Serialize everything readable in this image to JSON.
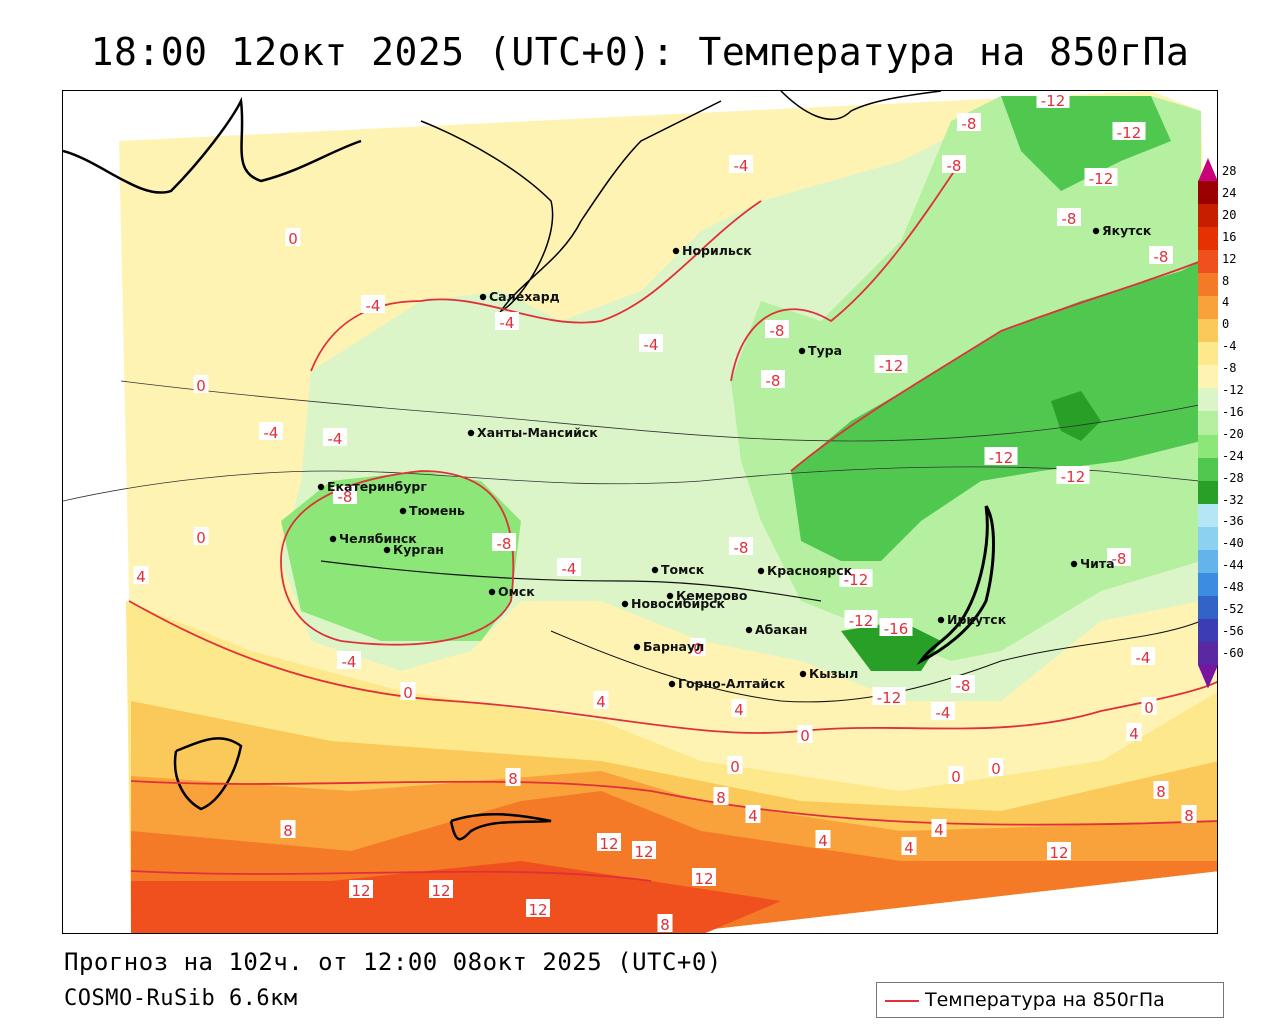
{
  "title": "18:00 12окт 2025 (UTC+0): Температура на 850гПа",
  "footer": {
    "forecast": "Прогноз на 102ч. от 12:00 08окт 2025 (UTC+0)",
    "model": "COSMO-RuSib 6.6км"
  },
  "legend": {
    "label": "Температура на 850гПа",
    "line_color": "#e0303a"
  },
  "colorbar": {
    "ticks": [
      "28",
      "24",
      "20",
      "16",
      "12",
      "8",
      "4",
      "0",
      "-4",
      "-8",
      "-12",
      "-16",
      "-20",
      "-24",
      "-28",
      "-32",
      "-36",
      "-40",
      "-44",
      "-48",
      "-52",
      "-56",
      "-60"
    ],
    "colors": [
      "#c8007a",
      "#9b0000",
      "#c81e00",
      "#e63200",
      "#f0501e",
      "#f57a28",
      "#f9a23c",
      "#fbc85a",
      "#fde88c",
      "#fff3b4",
      "#dcf5c8",
      "#b4f0a0",
      "#8ce678",
      "#50c850",
      "#28a028",
      "#b4e6f5",
      "#8cd2f0",
      "#64b4eb",
      "#3c8ce1",
      "#3264c8",
      "#3c3cb4",
      "#5a28a0",
      "#7814a0"
    ]
  },
  "cities": [
    {
      "name": "Норильск"
    },
    {
      "name": "Якутск"
    },
    {
      "name": "Салехард"
    },
    {
      "name": "Тура"
    },
    {
      "name": "Ханты-Мансийск"
    },
    {
      "name": "Екатеринбург"
    },
    {
      "name": "Тюмень"
    },
    {
      "name": "Челябинск"
    },
    {
      "name": "Курган"
    },
    {
      "name": "Омск"
    },
    {
      "name": "Томск"
    },
    {
      "name": "Новосибирск"
    },
    {
      "name": "Кемерово"
    },
    {
      "name": "Красноярск"
    },
    {
      "name": "Абакан"
    },
    {
      "name": "Барнаул"
    },
    {
      "name": "Горно-Алтайск"
    },
    {
      "name": "Кызыл"
    },
    {
      "name": "Иркутск"
    },
    {
      "name": "Чита"
    }
  ],
  "contour_labels": [
    {
      "value": "0"
    },
    {
      "value": "-4"
    },
    {
      "value": "-4"
    },
    {
      "value": "-4"
    },
    {
      "value": "-8"
    },
    {
      "value": "-8"
    },
    {
      "value": "-12"
    },
    {
      "value": "-12"
    },
    {
      "value": "-8"
    },
    {
      "value": "-8"
    },
    {
      "value": "-12"
    },
    {
      "value": "-4"
    },
    {
      "value": "-8"
    },
    {
      "value": "-8"
    },
    {
      "value": "-12"
    },
    {
      "value": "0"
    },
    {
      "value": "-4"
    },
    {
      "value": "-4"
    },
    {
      "value": "-8"
    },
    {
      "value": "0"
    },
    {
      "value": "4"
    },
    {
      "value": "-8"
    },
    {
      "value": "-4"
    },
    {
      "value": "-8"
    },
    {
      "value": "-12"
    },
    {
      "value": "-12"
    },
    {
      "value": "-12"
    },
    {
      "value": "-16"
    },
    {
      "value": "-12"
    },
    {
      "value": "-12"
    },
    {
      "value": "-8"
    },
    {
      "value": "-4"
    },
    {
      "value": "-4"
    },
    {
      "value": "-8"
    },
    {
      "value": "0"
    },
    {
      "value": "-4"
    },
    {
      "value": "0"
    },
    {
      "value": "0"
    },
    {
      "value": "4"
    },
    {
      "value": "4"
    },
    {
      "value": "0"
    },
    {
      "value": "0"
    },
    {
      "value": "0"
    },
    {
      "value": "0"
    },
    {
      "value": "4"
    },
    {
      "value": "8"
    },
    {
      "value": "8"
    },
    {
      "value": "8"
    },
    {
      "value": "4"
    },
    {
      "value": "4"
    },
    {
      "value": "4"
    },
    {
      "value": "4"
    },
    {
      "value": "8"
    },
    {
      "value": "8"
    },
    {
      "value": "12"
    },
    {
      "value": "12"
    },
    {
      "value": "12"
    },
    {
      "value": "12"
    },
    {
      "value": "12"
    },
    {
      "value": "12"
    },
    {
      "value": "8"
    },
    {
      "value": "12"
    }
  ]
}
